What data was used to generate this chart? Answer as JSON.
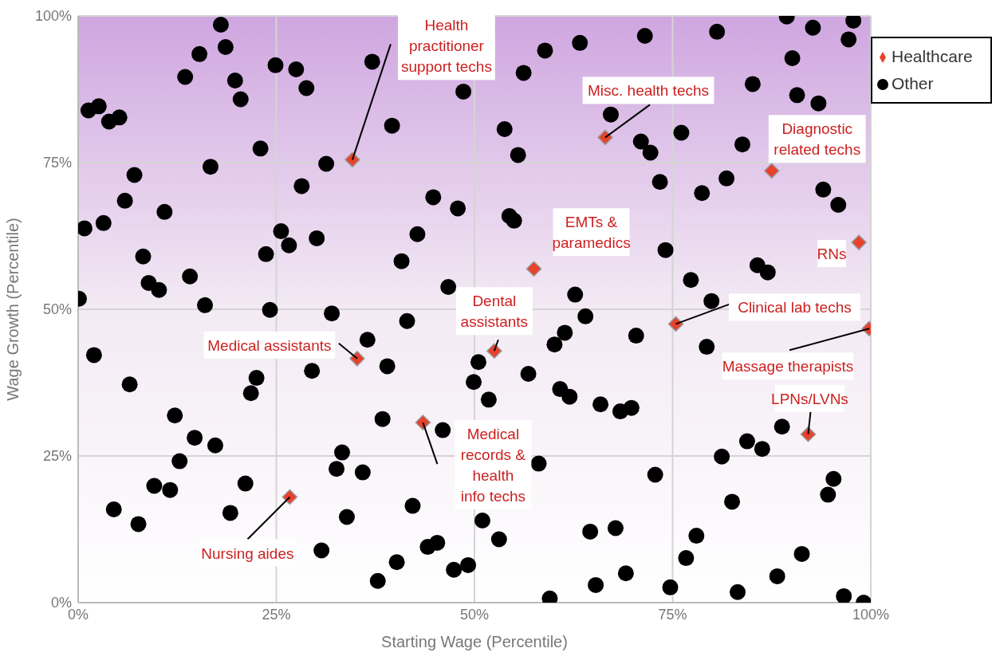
{
  "chart_data": {
    "type": "scatter",
    "xlabel": "Starting Wage (Percentile)",
    "ylabel": "Wage Growth (Percentile)",
    "xlim": [
      0,
      100
    ],
    "ylim": [
      0,
      100
    ],
    "xticks": [
      {
        "value": 0,
        "label": "0%"
      },
      {
        "value": 25,
        "label": "25%"
      },
      {
        "value": 50,
        "label": "50%"
      },
      {
        "value": 75,
        "label": "75%"
      },
      {
        "value": 100,
        "label": "100%"
      }
    ],
    "yticks": [
      {
        "value": 0,
        "label": "0%"
      },
      {
        "value": 25,
        "label": "25%"
      },
      {
        "value": 50,
        "label": "50%"
      },
      {
        "value": 75,
        "label": "75%"
      },
      {
        "value": 100,
        "label": "100%"
      }
    ],
    "grid": true,
    "legend": "top right",
    "series": [
      {
        "name": "Healthcare",
        "color": "#e8412c",
        "marker": "diamond",
        "x": [
          34.6,
          66.5,
          87.5,
          57.5,
          98.5,
          52.5,
          75.4,
          35.2,
          99.8,
          92.1,
          43.5,
          26.7
        ],
        "values": [
          75.5,
          79.3,
          73.6,
          56.9,
          61.4,
          42.9,
          47.5,
          41.6,
          46.7,
          28.7,
          30.7,
          18.0
        ]
      },
      {
        "name": "Other",
        "color": "#000000",
        "marker": "circle",
        "x": [
          0.1,
          0.8,
          1.3,
          2.6,
          3.9,
          5.2,
          3.2,
          2.0,
          5.9,
          7.1,
          8.2,
          8.9,
          10.2,
          10.9,
          6.5,
          4.5,
          7.6,
          9.6,
          11.6,
          12.2,
          12.8,
          13.5,
          14.1,
          14.7,
          15.3,
          16.0,
          16.7,
          17.3,
          18.0,
          18.6,
          19.2,
          19.8,
          20.5,
          21.1,
          21.8,
          22.5,
          23.0,
          23.7,
          24.2,
          24.9,
          25.6,
          26.6,
          27.5,
          28.2,
          28.8,
          29.5,
          30.1,
          30.7,
          31.3,
          32.0,
          32.6,
          33.3,
          33.9,
          35.9,
          36.5,
          37.1,
          37.8,
          38.4,
          39.0,
          39.6,
          40.2,
          40.8,
          41.5,
          42.2,
          42.8,
          44.1,
          44.8,
          45.3,
          46.0,
          46.7,
          47.4,
          47.9,
          48.6,
          49.2,
          49.9,
          50.5,
          51.0,
          51.8,
          53.1,
          53.8,
          54.4,
          55.0,
          55.5,
          56.2,
          58.9,
          63.3,
          71.5,
          67.2,
          71.0,
          72.2,
          73.4,
          74.1,
          62.7,
          64.0,
          77.3,
          79.9,
          80.6,
          76.1,
          85.1,
          83.8,
          89.4,
          92.7,
          97.8,
          97.2,
          90.1,
          90.7,
          93.4,
          81.8,
          78.7,
          94.0,
          95.9,
          85.7,
          87.0,
          61.4,
          60.1,
          70.4,
          56.8,
          60.8,
          62.0,
          65.9,
          68.4,
          69.8,
          79.3,
          88.8,
          84.4,
          86.3,
          81.2,
          58.1,
          72.8,
          95.3,
          94.6,
          82.5,
          64.6,
          67.8,
          78.0,
          76.7,
          91.3,
          69.1,
          65.3,
          88.2,
          74.7,
          83.2,
          59.5,
          96.6,
          99.1
        ],
        "values": [
          51.8,
          63.8,
          83.9,
          84.6,
          82.0,
          82.7,
          64.7,
          42.2,
          68.5,
          72.9,
          59.0,
          54.5,
          53.3,
          66.6,
          37.2,
          15.9,
          13.4,
          19.9,
          19.2,
          31.9,
          24.1,
          89.6,
          55.6,
          28.1,
          93.5,
          50.7,
          74.3,
          26.8,
          98.5,
          94.7,
          15.3,
          89.0,
          85.8,
          20.3,
          35.7,
          38.3,
          77.4,
          59.4,
          49.9,
          91.6,
          63.3,
          60.9,
          90.9,
          71.0,
          87.7,
          39.5,
          62.1,
          8.9,
          74.8,
          49.3,
          22.8,
          25.6,
          14.6,
          22.2,
          44.8,
          92.2,
          3.7,
          31.3,
          40.3,
          81.3,
          6.9,
          58.2,
          48.0,
          16.5,
          62.8,
          9.5,
          69.1,
          10.2,
          29.4,
          53.8,
          5.6,
          67.2,
          87.1,
          6.4,
          37.6,
          41.0,
          14.0,
          34.6,
          10.8,
          80.7,
          65.9,
          65.1,
          76.3,
          90.3,
          94.1,
          95.4,
          96.6,
          83.2,
          78.6,
          76.7,
          71.7,
          60.1,
          52.5,
          48.8,
          55.0,
          51.4,
          97.3,
          80.1,
          88.4,
          78.1,
          99.9,
          98.0,
          99.2,
          96.0,
          92.8,
          86.5,
          85.1,
          72.3,
          69.8,
          70.4,
          67.8,
          57.5,
          56.3,
          46.0,
          44.0,
          45.5,
          39.0,
          36.4,
          35.1,
          33.8,
          32.6,
          33.2,
          43.6,
          30.0,
          27.5,
          26.2,
          24.9,
          23.7,
          21.8,
          21.1,
          18.4,
          17.2,
          12.1,
          12.7,
          11.4,
          7.6,
          8.3,
          5.0,
          3.0,
          4.5,
          2.6,
          1.8,
          0.7,
          1.1,
          0.0
        ]
      }
    ],
    "annotations": [
      {
        "text": "Health practitioner support techs",
        "x": 34.6,
        "y": 75.5
      },
      {
        "text": "Misc. health techs",
        "x": 66.5,
        "y": 79.3
      },
      {
        "text": "Diagnostic related techs",
        "x": 87.5,
        "y": 73.6
      },
      {
        "text": "EMTs & paramedics",
        "x": 57.5,
        "y": 56.9
      },
      {
        "text": "RNs",
        "x": 98.5,
        "y": 61.4
      },
      {
        "text": "Dental assistants",
        "x": 52.5,
        "y": 42.9
      },
      {
        "text": "Clinical lab techs",
        "x": 75.4,
        "y": 47.5
      },
      {
        "text": "Medical assistants",
        "x": 35.2,
        "y": 41.6
      },
      {
        "text": "Massage therapists",
        "x": 99.8,
        "y": 46.7
      },
      {
        "text": "LPNs/LVNs",
        "x": 92.1,
        "y": 28.7
      },
      {
        "text": "Medical records & health info techs",
        "x": 43.5,
        "y": 30.7
      },
      {
        "text": "Nursing aides",
        "x": 26.7,
        "y": 18.0
      }
    ]
  }
}
